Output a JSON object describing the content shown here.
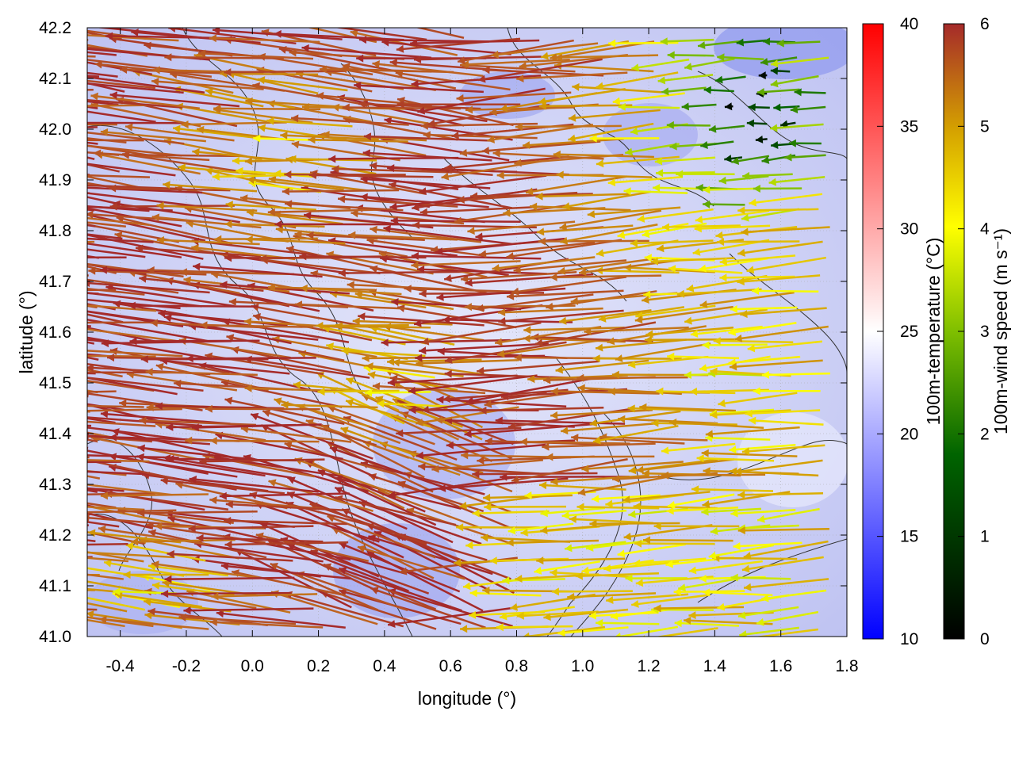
{
  "chart_data": {
    "type": "vector-field",
    "xlabel": "longitude (°)",
    "ylabel": "latitude (°)",
    "xlim": [
      -0.5,
      1.8
    ],
    "ylim": [
      41.0,
      42.2
    ],
    "xticks": [
      "-0.4",
      "-0.2",
      "0.0",
      "0.2",
      "0.4",
      "0.6",
      "0.8",
      "1.0",
      "1.2",
      "1.4",
      "1.6",
      "1.8"
    ],
    "yticks": [
      "41.0",
      "41.1",
      "41.2",
      "41.3",
      "41.4",
      "41.5",
      "41.6",
      "41.7",
      "41.8",
      "41.9",
      "42.0",
      "42.1",
      "42.2"
    ],
    "grid": true,
    "temperature_colorbar": {
      "label": "100m-temperature (°C)",
      "range": [
        10,
        40
      ],
      "ticks": [
        "10",
        "15",
        "20",
        "25",
        "30",
        "35",
        "40"
      ],
      "colors": [
        "#0000ff",
        "#ffffff",
        "#ff0000"
      ]
    },
    "wind_colorbar": {
      "label": "100m-wind speed (m s⁻¹)",
      "range": [
        0,
        6
      ],
      "ticks": [
        "0",
        "1",
        "2",
        "3",
        "4",
        "5",
        "6"
      ],
      "colors": [
        "#000000",
        "#006400",
        "#7fbf00",
        "#ffff00",
        "#d4a000",
        "#c06a20",
        "#a52a2a"
      ]
    },
    "wind_field_description": {
      "prevailing_direction": "westward",
      "strong_region": "west and centre (speed ~6 m s-1)",
      "weak_region": "north-east and east (speed 0-3 m s-1)"
    },
    "temperature_field": "uniform ~18-22 °C, bluish-white background"
  }
}
